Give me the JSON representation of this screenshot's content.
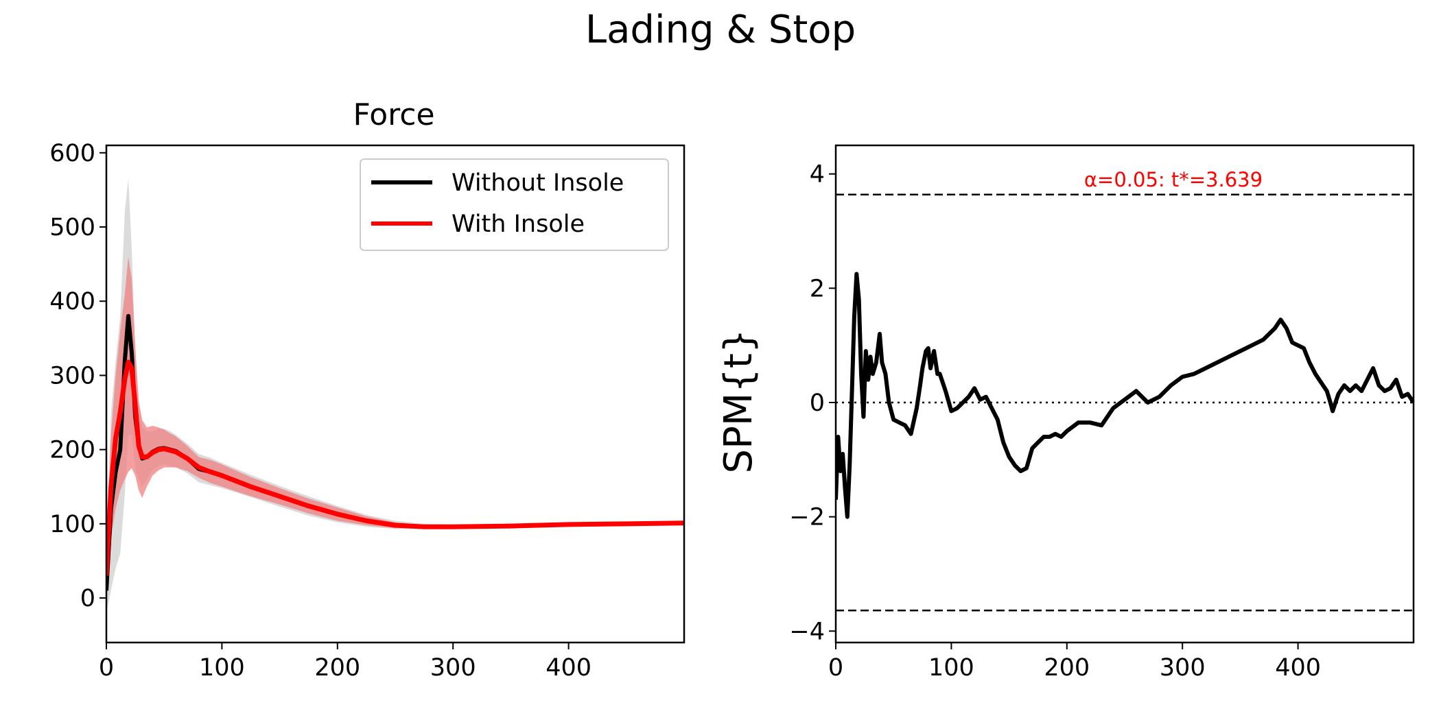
{
  "figure": {
    "suptitle": "Lading & Stop"
  },
  "chart_data": [
    {
      "type": "line",
      "title": "Force",
      "xlabel": "",
      "ylabel": "",
      "xlim": [
        0,
        500
      ],
      "ylim": [
        -60,
        610
      ],
      "xticks": [
        0,
        100,
        200,
        300,
        400
      ],
      "yticks": [
        0,
        100,
        200,
        300,
        400,
        500,
        600
      ],
      "legend_position": "top-right",
      "series": [
        {
          "name": "Without Insole",
          "color": "#000000",
          "band_color": "#c8c8c8",
          "x": [
            0,
            4,
            8,
            12,
            16,
            19,
            22,
            25,
            28,
            31,
            35,
            40,
            45,
            50,
            55,
            60,
            70,
            80,
            90,
            100,
            125,
            150,
            175,
            200,
            225,
            250,
            275,
            300,
            350,
            400,
            450,
            500
          ],
          "mean": [
            10,
            120,
            170,
            200,
            320,
            380,
            330,
            245,
            205,
            188,
            190,
            197,
            201,
            202,
            200,
            198,
            188,
            174,
            170,
            165,
            150,
            137,
            124,
            113,
            104,
            98,
            96,
            96,
            97,
            99,
            100,
            101
          ],
          "upper": [
            50,
            250,
            320,
            380,
            520,
            565,
            470,
            330,
            265,
            230,
            225,
            225,
            228,
            228,
            225,
            220,
            208,
            194,
            189,
            182,
            166,
            151,
            137,
            124,
            112,
            104,
            100,
            99,
            100,
            101,
            102,
            102
          ],
          "lower": [
            -20,
            10,
            40,
            60,
            140,
            220,
            220,
            175,
            160,
            150,
            160,
            172,
            178,
            180,
            178,
            176,
            168,
            156,
            152,
            148,
            136,
            123,
            111,
            102,
            96,
            93,
            93,
            93,
            95,
            97,
            99,
            100
          ]
        },
        {
          "name": "With Insole",
          "color": "#ff0000",
          "band_color": "#f08080",
          "x": [
            0,
            4,
            8,
            12,
            16,
            19,
            22,
            25,
            28,
            31,
            35,
            40,
            45,
            50,
            55,
            60,
            70,
            80,
            90,
            100,
            125,
            150,
            175,
            200,
            225,
            250,
            275,
            300,
            350,
            400,
            450,
            500
          ],
          "mean": [
            30,
            150,
            215,
            250,
            295,
            318,
            310,
            260,
            205,
            190,
            190,
            196,
            200,
            201,
            199,
            197,
            188,
            176,
            170,
            165,
            150,
            137,
            124,
            113,
            104,
            98,
            96,
            96,
            97,
            99,
            100,
            101
          ],
          "upper": [
            60,
            220,
            300,
            360,
            410,
            460,
            430,
            340,
            265,
            240,
            230,
            232,
            230,
            227,
            222,
            218,
            205,
            190,
            186,
            180,
            163,
            148,
            134,
            122,
            110,
            102,
            98,
            98,
            99,
            100,
            101,
            102
          ],
          "lower": [
            0,
            80,
            120,
            145,
            160,
            170,
            175,
            165,
            145,
            135,
            150,
            165,
            172,
            176,
            176,
            176,
            171,
            162,
            155,
            150,
            137,
            126,
            114,
            104,
            98,
            94,
            94,
            94,
            95,
            98,
            99,
            100
          ]
        }
      ]
    },
    {
      "type": "line",
      "title": "",
      "xlabel": "",
      "ylabel": "SPM{t}",
      "xlim": [
        0,
        500
      ],
      "ylim": [
        -4.2,
        4.5
      ],
      "xticks": [
        0,
        100,
        200,
        300,
        400
      ],
      "yticks": [
        -4,
        -2,
        0,
        2,
        4
      ],
      "threshold": 3.639,
      "threshold_label": "α=0.05:  t*=3.639",
      "zero_line": "dotted",
      "series": [
        {
          "name": "",
          "color": "#000000",
          "x": [
            0,
            2,
            4,
            6,
            8,
            10,
            12,
            14,
            16,
            18,
            20,
            22,
            24,
            26,
            28,
            30,
            32,
            35,
            38,
            40,
            43,
            46,
            50,
            55,
            60,
            65,
            70,
            73,
            75,
            78,
            80,
            82,
            85,
            88,
            90,
            95,
            100,
            105,
            110,
            115,
            120,
            125,
            130,
            135,
            140,
            145,
            150,
            155,
            160,
            165,
            170,
            175,
            180,
            185,
            190,
            195,
            200,
            210,
            220,
            230,
            240,
            250,
            260,
            270,
            280,
            290,
            300,
            310,
            320,
            330,
            340,
            350,
            360,
            370,
            380,
            385,
            390,
            395,
            400,
            405,
            410,
            415,
            420,
            425,
            428,
            430,
            435,
            440,
            445,
            450,
            455,
            460,
            465,
            470,
            475,
            480,
            485,
            490,
            495,
            500
          ],
          "y": [
            -1.7,
            -0.6,
            -1.2,
            -0.9,
            -1.5,
            -2.0,
            -1.1,
            0.2,
            1.5,
            2.25,
            1.8,
            0.5,
            -0.25,
            0.9,
            0.4,
            0.8,
            0.5,
            0.7,
            1.2,
            0.7,
            0.5,
            0.0,
            -0.3,
            -0.35,
            -0.4,
            -0.55,
            -0.1,
            0.3,
            0.6,
            0.9,
            0.95,
            0.6,
            0.9,
            0.5,
            0.5,
            0.2,
            -0.15,
            -0.1,
            0.0,
            0.1,
            0.25,
            0.05,
            0.1,
            -0.1,
            -0.3,
            -0.7,
            -0.95,
            -1.1,
            -1.2,
            -1.15,
            -0.8,
            -0.7,
            -0.6,
            -0.6,
            -0.55,
            -0.6,
            -0.5,
            -0.35,
            -0.35,
            -0.4,
            -0.1,
            0.05,
            0.2,
            0.0,
            0.1,
            0.3,
            0.45,
            0.5,
            0.6,
            0.7,
            0.8,
            0.9,
            1.0,
            1.1,
            1.3,
            1.45,
            1.3,
            1.05,
            1.0,
            0.95,
            0.7,
            0.5,
            0.35,
            0.2,
            0.0,
            -0.15,
            0.15,
            0.3,
            0.2,
            0.3,
            0.2,
            0.4,
            0.6,
            0.3,
            0.2,
            0.25,
            0.4,
            0.1,
            0.15,
            0.0
          ]
        }
      ]
    }
  ]
}
